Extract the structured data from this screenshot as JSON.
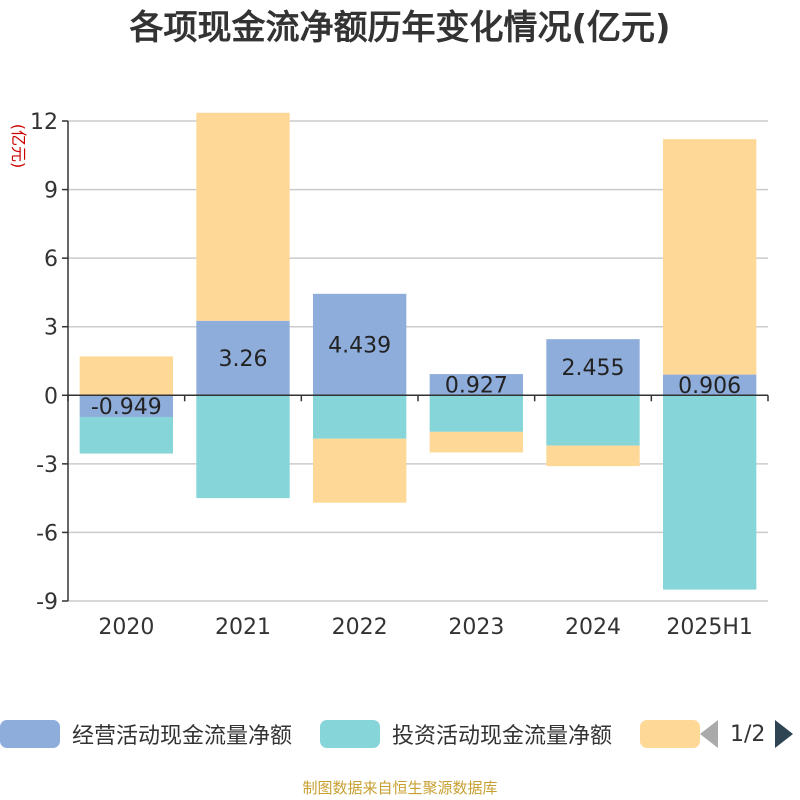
{
  "title": "各项现金流净额历年变化情况(亿元)",
  "footer": "制图数据来自恒生聚源数据库",
  "legend": {
    "pager_text": "1/2"
  },
  "chart_data": {
    "type": "bar",
    "stacked": true,
    "categories": [
      "2020",
      "2021",
      "2022",
      "2023",
      "2024",
      "2025H1"
    ],
    "ylabel": "(亿元)",
    "ylim": [
      -9,
      12
    ],
    "yticks": [
      -9,
      -6,
      -3,
      0,
      3,
      6,
      9,
      12
    ],
    "grid": true,
    "legend_position": "bottom",
    "series": [
      {
        "name": "经营活动现金流量净额",
        "color": "#8eaddb",
        "values": [
          -0.949,
          3.26,
          4.439,
          0.927,
          2.455,
          0.906
        ],
        "labels": [
          "-0.949",
          "3.26",
          "4.439",
          "0.927",
          "2.455",
          "0.906"
        ]
      },
      {
        "name": "投资活动现金流量净额",
        "color": "#86d5d8",
        "values": [
          -1.6,
          -4.5,
          -1.9,
          -1.6,
          -2.2,
          -8.5
        ]
      },
      {
        "name": "",
        "color": "#fed896",
        "values": [
          1.7,
          9.1,
          -2.8,
          -0.9,
          -0.9,
          10.3
        ]
      }
    ]
  }
}
